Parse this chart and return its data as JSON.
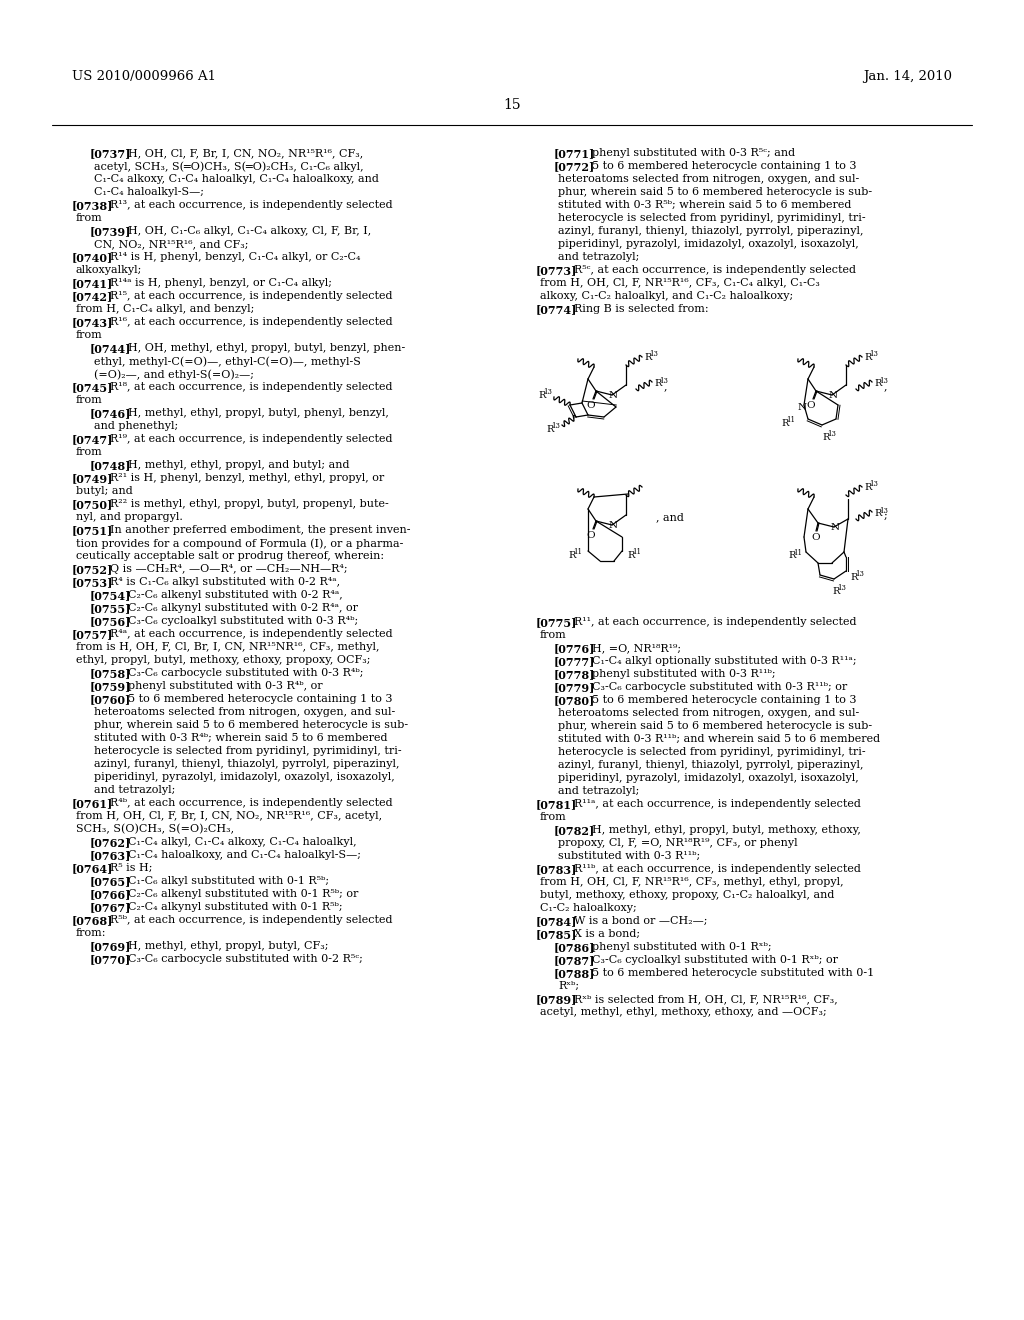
{
  "header_left": "US 2010/0009966 A1",
  "header_right": "Jan. 14, 2010",
  "page_number": "15",
  "bg": "#ffffff"
}
